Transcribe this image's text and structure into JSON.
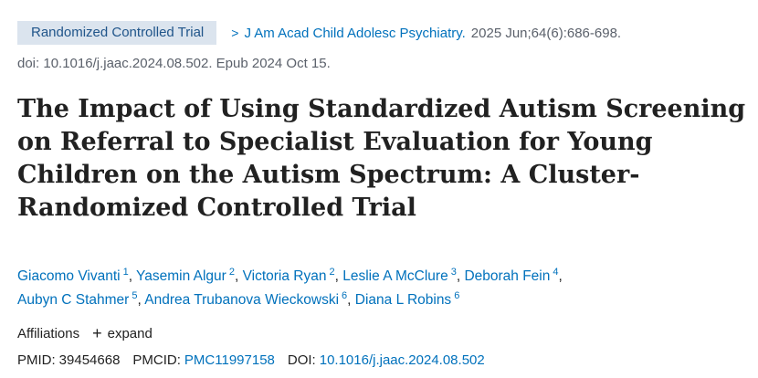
{
  "header": {
    "publication_type": "Randomized Controlled Trial",
    "chevron_glyph": ">",
    "journal": "J Am Acad Child Adolesc Psychiatry.",
    "citation": "2025 Jun;64(6):686-698."
  },
  "doi_line": "doi: 10.1016/j.jaac.2024.08.502. Epub 2024 Oct 15.",
  "title": "The Impact of Using Standardized Autism Screening on Referral to Specialist Evaluation for Young Children on the Autism Spectrum: A Cluster-Randomized Controlled Trial",
  "authors": [
    {
      "name": "Giacomo Vivanti",
      "aff": "1"
    },
    {
      "name": "Yasemin Algur",
      "aff": "2"
    },
    {
      "name": "Victoria Ryan",
      "aff": "2"
    },
    {
      "name": "Leslie A McClure",
      "aff": "3"
    },
    {
      "name": "Deborah Fein",
      "aff": "4"
    },
    {
      "name": "Aubyn C Stahmer",
      "aff": "5"
    },
    {
      "name": "Andrea Trubanova Wieckowski",
      "aff": "6"
    },
    {
      "name": "Diana L Robins",
      "aff": "6"
    }
  ],
  "author_separator": ",",
  "affiliations": {
    "label": "Affiliations",
    "expand_icon": "+",
    "expand_label": "expand"
  },
  "identifiers": {
    "pmid_label": "PMID:",
    "pmid": "39454668",
    "pmcid_label": "PMCID:",
    "pmcid": "PMC11997158",
    "doi_label": "DOI:",
    "doi": "10.1016/j.jaac.2024.08.502"
  },
  "colors": {
    "link": "#0071bc",
    "pub_type_bg": "#dbe4ee",
    "pub_type_text": "#20558a",
    "muted": "#5b616b",
    "text": "#212121"
  }
}
